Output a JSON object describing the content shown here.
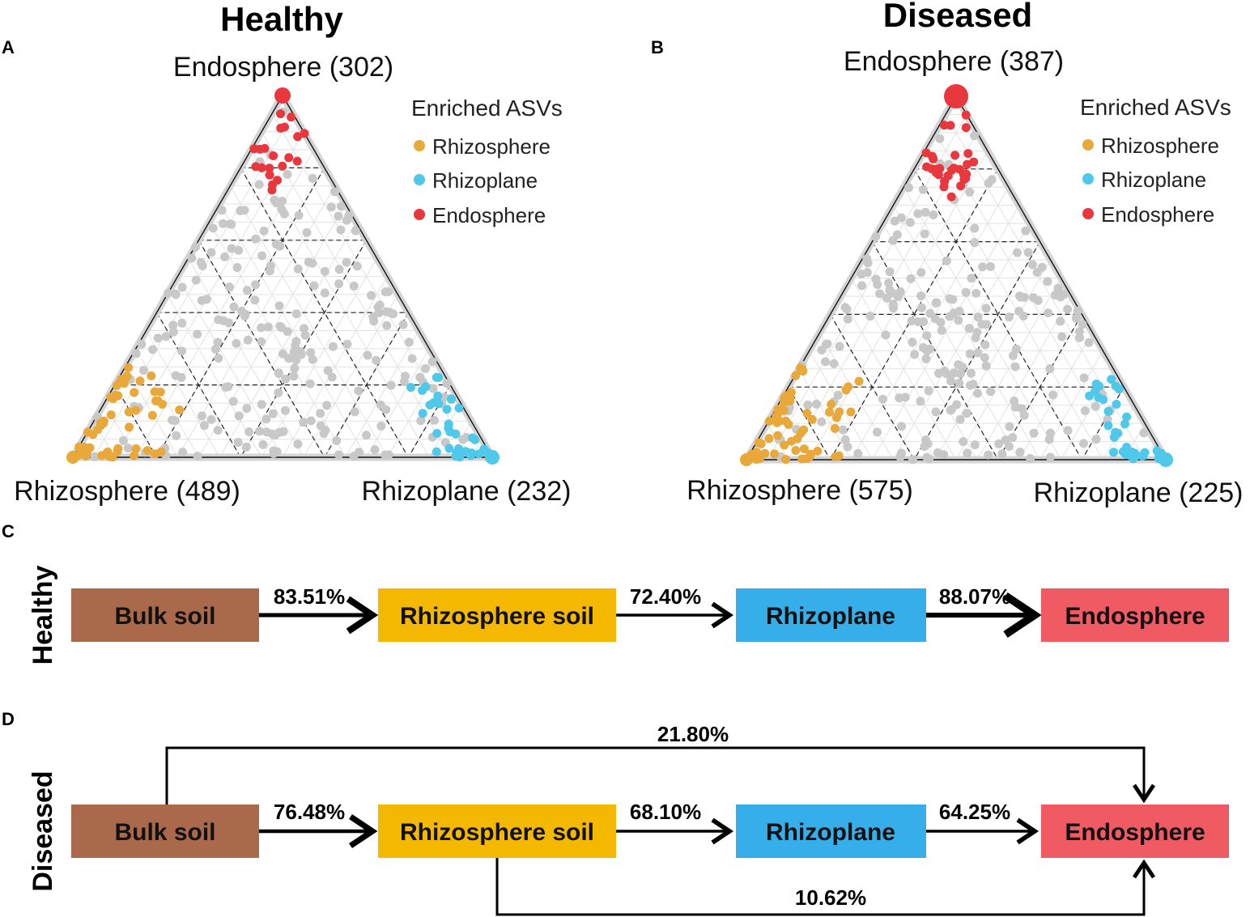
{
  "colors": {
    "rhizosphere": "#E8A93A",
    "rhizoplane": "#4FC8EA",
    "endosphere": "#E8383D",
    "neutral": "#C8C8C8",
    "bulk_soil_box": "#A9694A",
    "rhizosphere_box": "#F5B800",
    "rhizoplane_box": "#35AEEA",
    "endosphere_box": "#F05A62"
  },
  "chart_data": [
    {
      "type": "ternary",
      "panel": "A",
      "title": "Healthy",
      "vertices": {
        "top": "Endosphere (302)",
        "left": "Rhizosphere (489)",
        "right": "Rhizoplane (232)"
      },
      "enriched_counts": {
        "Endosphere": 302,
        "Rhizosphere": 489,
        "Rhizoplane": 232
      },
      "legend": {
        "title": "Enriched ASVs",
        "items": [
          "Rhizosphere",
          "Rhizoplane",
          "Endosphere"
        ]
      },
      "grid_levels": [
        0.2,
        0.4,
        0.6,
        0.8
      ],
      "seed": 7
    },
    {
      "type": "ternary",
      "panel": "B",
      "title": "Diseased",
      "vertices": {
        "top": "Endosphere (387)",
        "left": "Rhizosphere (575)",
        "right": "Rhizoplane (225)"
      },
      "enriched_counts": {
        "Endosphere": 387,
        "Rhizosphere": 575,
        "Rhizoplane": 225
      },
      "legend": {
        "title": "Enriched ASVs",
        "items": [
          "Rhizosphere",
          "Rhizoplane",
          "Endosphere"
        ]
      },
      "grid_levels": [
        0.2,
        0.4,
        0.6,
        0.8
      ],
      "seed": 13
    },
    {
      "type": "flow",
      "panel": "C",
      "row_label": "Healthy",
      "nodes": [
        "Bulk soil",
        "Rhizosphere soil",
        "Rhizoplane",
        "Endosphere"
      ],
      "transitions": [
        {
          "from": "Bulk soil",
          "to": "Rhizosphere soil",
          "value": "83.51%"
        },
        {
          "from": "Rhizosphere soil",
          "to": "Rhizoplane",
          "value": "72.40%"
        },
        {
          "from": "Rhizoplane",
          "to": "Endosphere",
          "value": "88.07%"
        }
      ]
    },
    {
      "type": "flow",
      "panel": "D",
      "row_label": "Diseased",
      "nodes": [
        "Bulk soil",
        "Rhizosphere soil",
        "Rhizoplane",
        "Endosphere"
      ],
      "transitions": [
        {
          "from": "Bulk soil",
          "to": "Rhizosphere soil",
          "value": "76.48%"
        },
        {
          "from": "Rhizosphere soil",
          "to": "Rhizoplane",
          "value": "68.10%"
        },
        {
          "from": "Rhizoplane",
          "to": "Endosphere",
          "value": "64.25%"
        }
      ],
      "bypass_top": {
        "from": "Bulk soil",
        "to": "Endosphere",
        "value": "21.80%"
      },
      "bypass_bottom": {
        "from": "Rhizosphere soil",
        "to": "Endosphere",
        "value": "10.62%"
      }
    }
  ]
}
